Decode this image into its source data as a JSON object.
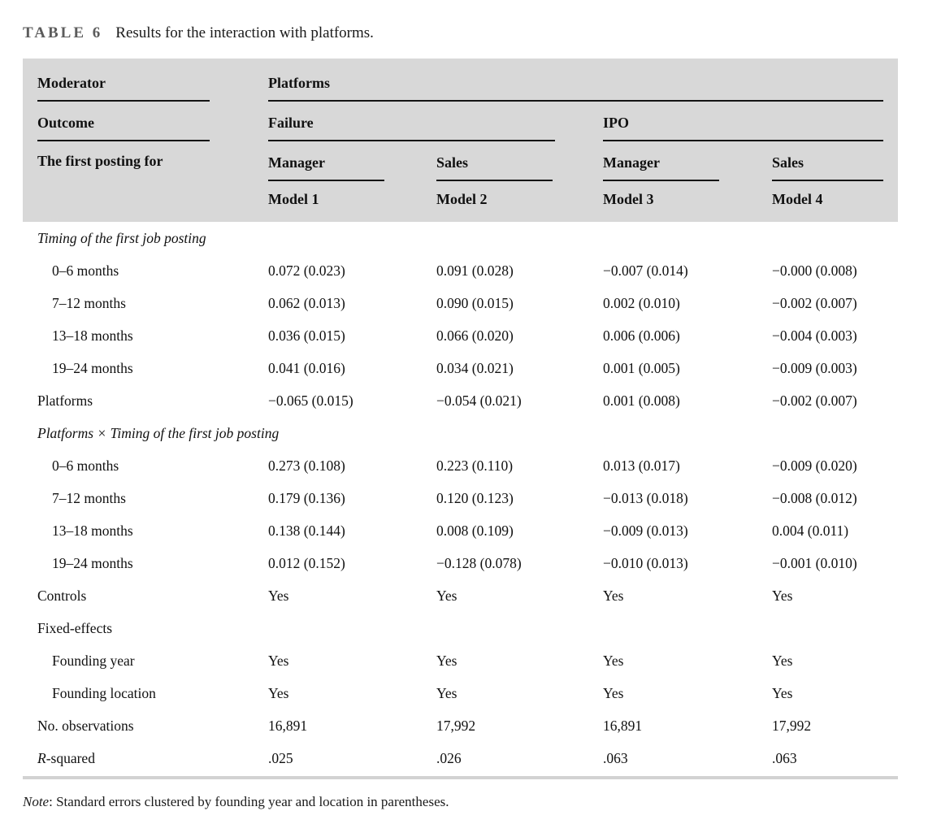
{
  "title": {
    "label": "TABLE 6",
    "caption": "Results for the interaction with platforms."
  },
  "header": {
    "moderator_label": "Moderator",
    "platforms_label": "Platforms",
    "outcome_label": "Outcome",
    "failure_label": "Failure",
    "ipo_label": "IPO",
    "first_posting_label": "The first posting for",
    "subcols": [
      "Manager",
      "Sales",
      "Manager",
      "Sales"
    ],
    "models": [
      "Model 1",
      "Model 2",
      "Model 3",
      "Model 4"
    ]
  },
  "table": {
    "rows": [
      {
        "label": "Timing of the first job posting",
        "section": true,
        "values": []
      },
      {
        "label": "0–6 months",
        "indent": true,
        "values": [
          "0.072 (0.023)",
          "0.091 (0.028)",
          "−0.007 (0.014)",
          "−0.000 (0.008)"
        ]
      },
      {
        "label": "7–12 months",
        "indent": true,
        "values": [
          "0.062 (0.013)",
          "0.090 (0.015)",
          "0.002 (0.010)",
          "−0.002 (0.007)"
        ]
      },
      {
        "label": "13–18 months",
        "indent": true,
        "values": [
          "0.036 (0.015)",
          "0.066 (0.020)",
          "0.006 (0.006)",
          "−0.004 (0.003)"
        ]
      },
      {
        "label": "19–24 months",
        "indent": true,
        "values": [
          "0.041 (0.016)",
          "0.034 (0.021)",
          "0.001 (0.005)",
          "−0.009 (0.003)"
        ]
      },
      {
        "label": "Platforms",
        "values": [
          "−0.065 (0.015)",
          "−0.054 (0.021)",
          "0.001 (0.008)",
          "−0.002 (0.007)"
        ]
      },
      {
        "label": "Platforms × Timing of the first job posting",
        "section": true,
        "values": []
      },
      {
        "label": "0–6 months",
        "indent": true,
        "values": [
          "0.273 (0.108)",
          "0.223 (0.110)",
          "0.013 (0.017)",
          "−0.009 (0.020)"
        ]
      },
      {
        "label": "7–12 months",
        "indent": true,
        "values": [
          "0.179 (0.136)",
          "0.120 (0.123)",
          "−0.013 (0.018)",
          "−0.008 (0.012)"
        ]
      },
      {
        "label": "13–18 months",
        "indent": true,
        "values": [
          "0.138 (0.144)",
          "0.008 (0.109)",
          "−0.009 (0.013)",
          "0.004 (0.011)"
        ]
      },
      {
        "label": "19–24 months",
        "indent": true,
        "values": [
          "0.012 (0.152)",
          "−0.128 (0.078)",
          "−0.010 (0.013)",
          "−0.001 (0.010)"
        ]
      },
      {
        "label": "Controls",
        "values": [
          "Yes",
          "Yes",
          "Yes",
          "Yes"
        ]
      },
      {
        "label": "Fixed-effects",
        "values": []
      },
      {
        "label": "Founding year",
        "indent": true,
        "values": [
          "Yes",
          "Yes",
          "Yes",
          "Yes"
        ]
      },
      {
        "label": "Founding location",
        "indent": true,
        "values": [
          "Yes",
          "Yes",
          "Yes",
          "Yes"
        ]
      },
      {
        "label": "No. observations",
        "values": [
          "16,891",
          "17,992",
          "16,891",
          "17,992"
        ]
      },
      {
        "label": "R-squared",
        "label_prefix_italic": "R",
        "label_suffix": "-squared",
        "values": [
          ".025",
          ".026",
          ".063",
          ".063"
        ]
      }
    ]
  },
  "note": {
    "prefix": "Note",
    "text": ": Standard errors clustered by founding year and location in parentheses."
  },
  "colors": {
    "header_bg": "#d8d8d8",
    "bottom_rule": "#d2d2d2",
    "title_label": "#5c5c5c",
    "text": "#111111"
  }
}
